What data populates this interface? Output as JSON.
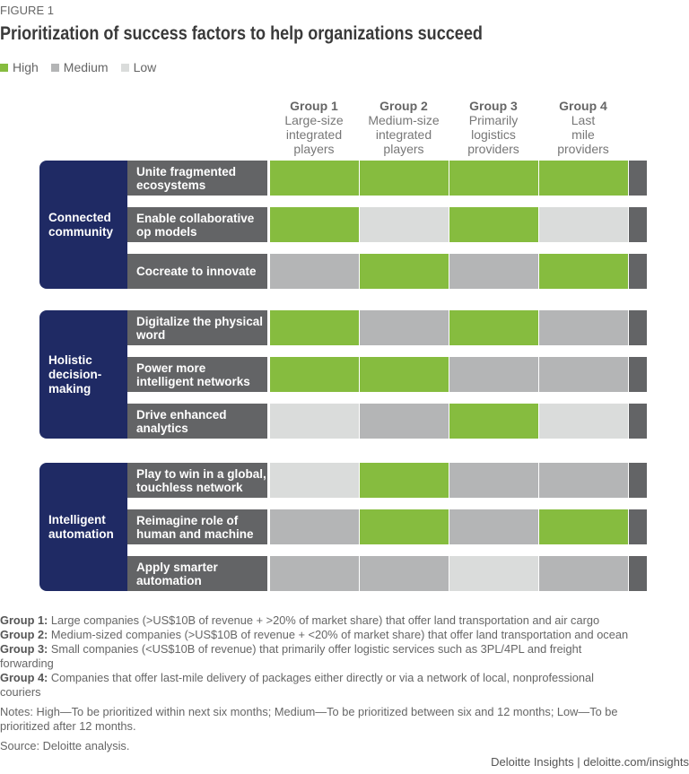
{
  "figure_label": "FIGURE 1",
  "chart_data": {
    "type": "table",
    "title": "Prioritization of success factors to help organizations succeed",
    "legend": [
      {
        "level": "High",
        "color": "#86bc3f"
      },
      {
        "level": "Medium",
        "color": "#b4b5b6"
      },
      {
        "level": "Low",
        "color": "#dadcdb"
      }
    ],
    "columns": [
      {
        "label": "Group 1",
        "sub": [
          "Large-size",
          "integrated",
          "players"
        ]
      },
      {
        "label": "Group 2",
        "sub": [
          "Medium-size",
          "integrated",
          "players"
        ]
      },
      {
        "label": "Group 3",
        "sub": [
          "Primarily",
          "logistics",
          "providers"
        ]
      },
      {
        "label": "Group 4",
        "sub": [
          "Last",
          "mile",
          "providers"
        ]
      }
    ],
    "categories": [
      {
        "label": [
          "Connected",
          "community"
        ],
        "rows": [
          {
            "label": [
              "Unite fragmented",
              "ecosystems"
            ],
            "values": [
              "High",
              "High",
              "High",
              "High"
            ]
          },
          {
            "label": [
              "Enable collaborative",
              "op models"
            ],
            "values": [
              "High",
              "Low",
              "High",
              "Low"
            ]
          },
          {
            "label": [
              "Cocreate to innovate"
            ],
            "values": [
              "Medium",
              "High",
              "Medium",
              "High"
            ]
          }
        ]
      },
      {
        "label": [
          "Holistic",
          "decision-",
          "making"
        ],
        "rows": [
          {
            "label": [
              "Digitalize the physical",
              "word"
            ],
            "values": [
              "High",
              "Medium",
              "High",
              "Medium"
            ]
          },
          {
            "label": [
              "Power more",
              "intelligent networks"
            ],
            "values": [
              "High",
              "High",
              "Medium",
              "Medium"
            ]
          },
          {
            "label": [
              "Drive enhanced",
              "analytics"
            ],
            "values": [
              "Low",
              "Medium",
              "High",
              "Low"
            ]
          }
        ]
      },
      {
        "label": [
          "Intelligent",
          "automation"
        ],
        "rows": [
          {
            "label": [
              "Play to win in a global,",
              "touchless network"
            ],
            "values": [
              "Low",
              "High",
              "Medium",
              "Medium"
            ]
          },
          {
            "label": [
              "Reimagine role of",
              "human and machine"
            ],
            "values": [
              "Medium",
              "High",
              "Medium",
              "High"
            ]
          },
          {
            "label": [
              "Apply smarter",
              "automation"
            ],
            "values": [
              "Medium",
              "Medium",
              "Low",
              "Medium"
            ]
          }
        ]
      }
    ]
  },
  "notes": {
    "groups": [
      {
        "label": "Group 1:",
        "text": " Large companies (>US$10B of revenue + >20% of market share) that offer land transportation and air cargo"
      },
      {
        "label": "Group 2:",
        "text": " Medium-sized companies (>US$10B of revenue + <20% of market share) that offer land transportation and ocean"
      },
      {
        "label": "Group 3:",
        "text": " Small companies (<US$10B of revenue) that primarily offer logistic services such as 3PL/4PL and freight forwarding"
      },
      {
        "label": "Group 4:",
        "text": " Companies that offer last-mile delivery of packages either directly or via a network of local, nonprofessional couriers"
      }
    ],
    "notes_text": "Notes: High—To be prioritized within next six months; Medium—To be prioritized between six and 12 months; Low—To be prioritized after 12 months.",
    "source": "Source: Deloitte analysis."
  },
  "credit": "Deloitte Insights | deloitte.com/insights"
}
